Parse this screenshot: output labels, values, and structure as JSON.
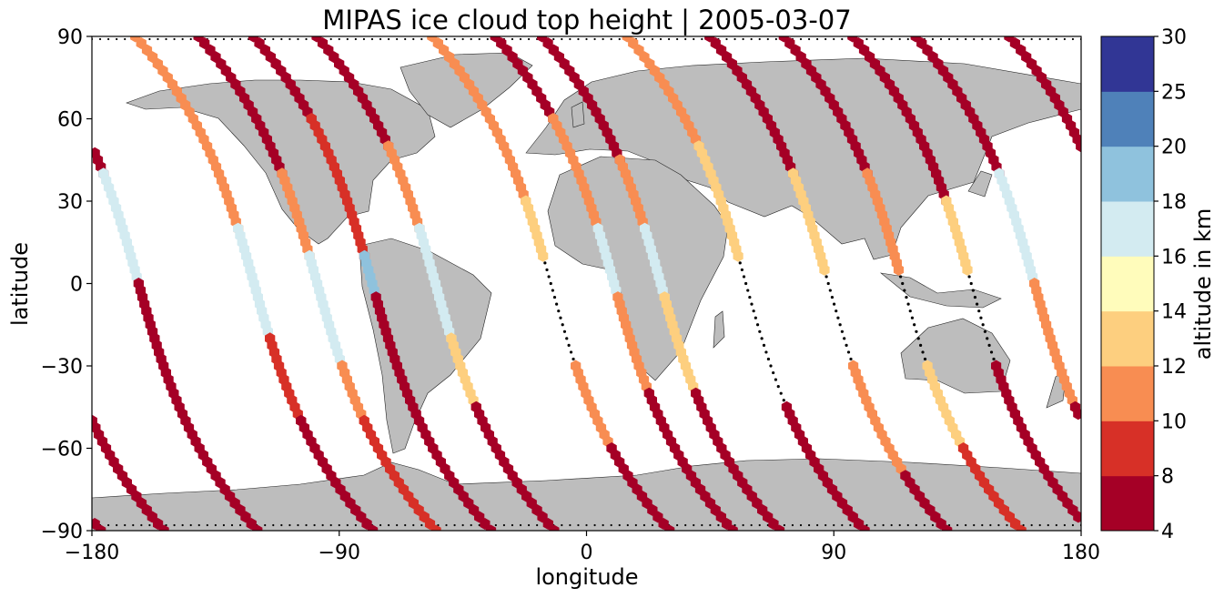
{
  "chart_data": {
    "type": "scatter",
    "title": "MIPAS ice cloud top height | 2005-03-07",
    "xlabel": "longitude",
    "ylabel": "latitude",
    "xlim": [
      -180,
      180
    ],
    "ylim": [
      -90,
      90
    ],
    "xticks": [
      "−180",
      "−90",
      "0",
      "90",
      "180"
    ],
    "yticks": [
      "90",
      "60",
      "30",
      "0",
      "−30",
      "−60",
      "−90"
    ],
    "grid": false,
    "basemap": "world coastlines, land filled grey",
    "marker": "hexagon",
    "colorbar": {
      "label": "altitude in km",
      "ticks": [
        "4",
        "8",
        "10",
        "12",
        "14",
        "16",
        "18",
        "20",
        "25",
        "30"
      ],
      "bins": [
        {
          "from": 4,
          "to": 8,
          "color": "#a50026"
        },
        {
          "from": 8,
          "to": 10,
          "color": "#d73027"
        },
        {
          "from": 10,
          "to": 12,
          "color": "#f88d52"
        },
        {
          "from": 12,
          "to": 14,
          "color": "#fdcf7f"
        },
        {
          "from": 14,
          "to": 16,
          "color": "#fffcbb"
        },
        {
          "from": 16,
          "to": 18,
          "color": "#d3ebf1"
        },
        {
          "from": 18,
          "to": 20,
          "color": "#8fc2dd"
        },
        {
          "from": 20,
          "to": 25,
          "color": "#4f81b9"
        },
        {
          "from": 25,
          "to": 30,
          "color": "#313695"
        }
      ]
    },
    "colors": {
      "land": "#bdbdbd",
      "coast": "#222222",
      "track_no_cloud": "#000000"
    },
    "orbits": [
      {
        "lon_at_equator": -163,
        "segments": [
          [
            90,
            40,
            6
          ],
          [
            40,
            0,
            16
          ],
          [
            0,
            -90,
            7
          ]
        ]
      },
      {
        "lon_at_equator": -121,
        "segments": [
          [
            90,
            20,
            11
          ],
          [
            20,
            -20,
            16
          ],
          [
            -20,
            -50,
            9
          ],
          [
            -50,
            -90,
            6
          ]
        ]
      },
      {
        "lon_at_equator": -98,
        "segments": [
          [
            90,
            40,
            6
          ],
          [
            40,
            10,
            11
          ],
          [
            10,
            -30,
            16
          ],
          [
            -30,
            -50,
            11
          ],
          [
            -50,
            -90,
            8
          ]
        ]
      },
      {
        "lon_at_equator": -78,
        "segments": [
          [
            90,
            60,
            6
          ],
          [
            60,
            10,
            8
          ],
          [
            10,
            -5,
            18
          ],
          [
            -5,
            -60,
            6
          ],
          [
            -60,
            -90,
            6
          ]
        ]
      },
      {
        "lon_at_equator": -55,
        "segments": [
          [
            90,
            50,
            6
          ],
          [
            50,
            20,
            11
          ],
          [
            20,
            -20,
            16
          ],
          [
            -20,
            -45,
            13
          ],
          [
            -45,
            -90,
            6
          ]
        ]
      },
      {
        "lon_at_equator": -13,
        "segments": [
          [
            90,
            30,
            11
          ],
          [
            30,
            10,
            13
          ],
          [
            10,
            -30,
            0
          ],
          [
            -30,
            -60,
            11
          ],
          [
            -60,
            -90,
            6
          ]
        ]
      },
      {
        "lon_at_equator": 10,
        "segments": [
          [
            90,
            60,
            6
          ],
          [
            60,
            20,
            11
          ],
          [
            20,
            -5,
            16
          ],
          [
            -5,
            -40,
            11
          ],
          [
            -40,
            -90,
            6
          ]
        ]
      },
      {
        "lon_at_equator": 27,
        "segments": [
          [
            90,
            45,
            6
          ],
          [
            45,
            20,
            11
          ],
          [
            20,
            -5,
            16
          ],
          [
            -5,
            -40,
            13
          ],
          [
            -40,
            -90,
            6
          ]
        ]
      },
      {
        "lon_at_equator": 58,
        "segments": [
          [
            90,
            50,
            11
          ],
          [
            50,
            10,
            13
          ],
          [
            10,
            -45,
            0
          ],
          [
            -45,
            -90,
            6
          ]
        ]
      },
      {
        "lon_at_equator": 88,
        "segments": [
          [
            90,
            40,
            6
          ],
          [
            40,
            5,
            13
          ],
          [
            5,
            -30,
            0
          ],
          [
            -30,
            -70,
            11
          ],
          [
            -70,
            -90,
            6
          ]
        ]
      },
      {
        "lon_at_equator": 115,
        "segments": [
          [
            90,
            40,
            6
          ],
          [
            40,
            5,
            11
          ],
          [
            5,
            -30,
            0
          ],
          [
            -30,
            -60,
            13
          ],
          [
            -60,
            -90,
            8
          ]
        ]
      },
      {
        "lon_at_equator": 140,
        "segments": [
          [
            90,
            30,
            6
          ],
          [
            30,
            5,
            13
          ],
          [
            5,
            -30,
            0
          ],
          [
            -30,
            -90,
            6
          ]
        ]
      },
      {
        "lon_at_equator": 163,
        "segments": [
          [
            90,
            40,
            6
          ],
          [
            40,
            0,
            16
          ],
          [
            0,
            -45,
            11
          ],
          [
            -45,
            -90,
            6
          ]
        ]
      }
    ]
  }
}
